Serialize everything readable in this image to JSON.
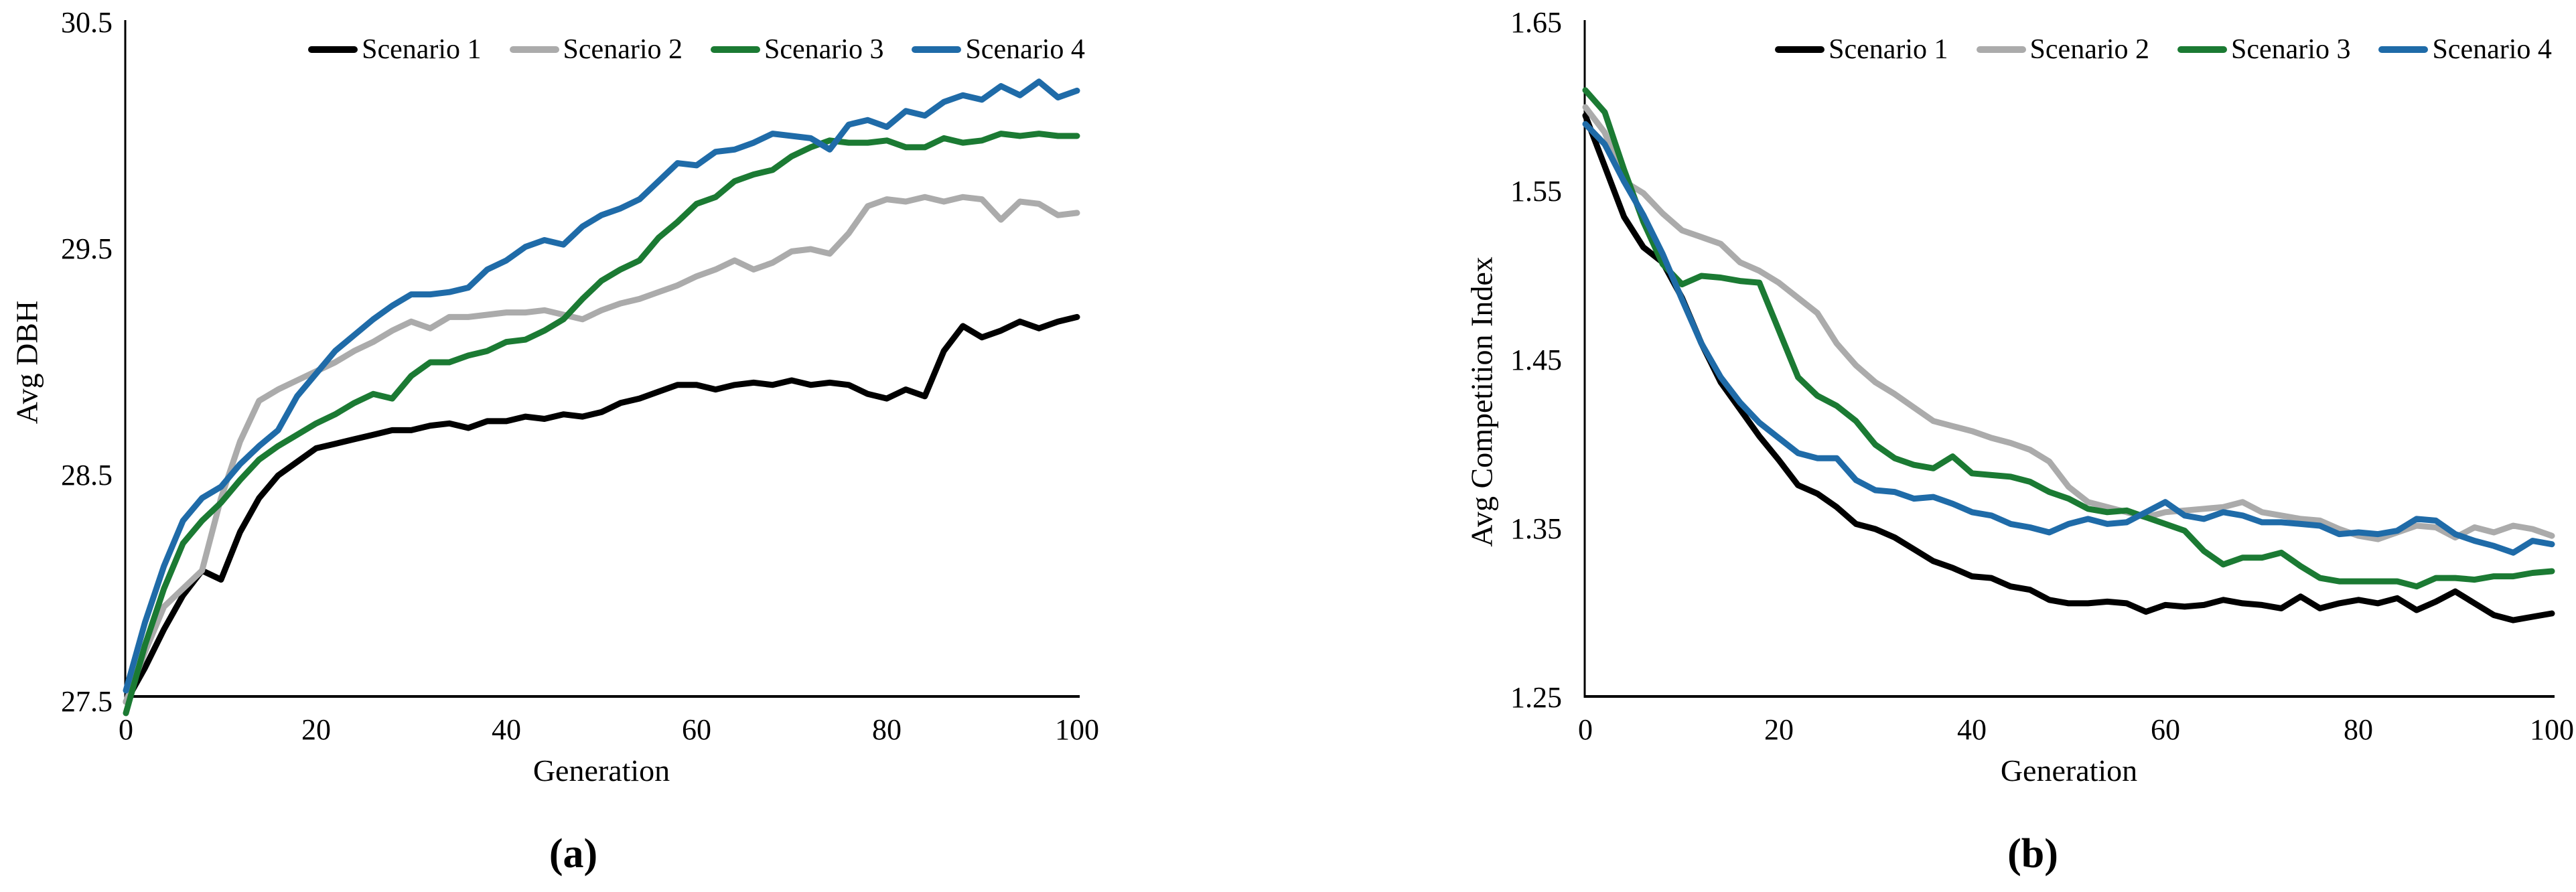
{
  "figure": {
    "legend_labels": [
      "Scenario 1",
      "Scenario 2",
      "Scenario 3",
      "Scenario 4"
    ],
    "series_colors": [
      "#000000",
      "#ABABAB",
      "#1B7A33",
      "#1F6BA8"
    ],
    "background_color": "#ffffff",
    "axis_color": "#000000"
  },
  "chart_data": [
    {
      "type": "line",
      "panel_label": "(a)",
      "title": "",
      "xlabel": "Generation",
      "ylabel": "Avg DBH",
      "xlim": [
        0,
        100
      ],
      "ylim": [
        27.5,
        30.5
      ],
      "xticks": [
        "0",
        "20",
        "40",
        "60",
        "80",
        "100"
      ],
      "yticks": [
        "30.5",
        "29.5",
        "28.5",
        "27.5"
      ],
      "ytick_values": [
        30.5,
        29.5,
        28.5,
        27.5
      ],
      "xtick_values": [
        0,
        20,
        40,
        60,
        80,
        100
      ],
      "grid": false,
      "legend_position": "top",
      "x": [
        0,
        2,
        4,
        6,
        8,
        10,
        12,
        14,
        16,
        18,
        20,
        22,
        24,
        26,
        28,
        30,
        32,
        34,
        36,
        38,
        40,
        42,
        44,
        46,
        48,
        50,
        52,
        54,
        56,
        58,
        60,
        62,
        64,
        66,
        68,
        70,
        72,
        74,
        76,
        78,
        80,
        82,
        84,
        86,
        88,
        90,
        92,
        94,
        96,
        98,
        100
      ],
      "series": [
        {
          "name": "Scenario 1",
          "color": "#000000",
          "values": [
            27.5,
            27.65,
            27.82,
            27.97,
            28.08,
            28.04,
            28.25,
            28.4,
            28.5,
            28.56,
            28.62,
            28.64,
            28.66,
            28.68,
            28.7,
            28.7,
            28.72,
            28.73,
            28.71,
            28.74,
            28.74,
            28.76,
            28.75,
            28.77,
            28.76,
            28.78,
            28.82,
            28.84,
            28.87,
            28.9,
            28.9,
            28.88,
            28.9,
            28.91,
            28.9,
            28.92,
            28.9,
            28.91,
            28.9,
            28.86,
            28.84,
            28.88,
            28.85,
            29.05,
            29.16,
            29.11,
            29.14,
            29.18,
            29.15,
            29.18,
            29.2
          ]
        },
        {
          "name": "Scenario 2",
          "color": "#ABABAB",
          "values": [
            27.5,
            27.72,
            27.92,
            28.0,
            28.08,
            28.4,
            28.65,
            28.83,
            28.88,
            28.92,
            28.96,
            29.0,
            29.05,
            29.09,
            29.14,
            29.18,
            29.15,
            29.2,
            29.2,
            29.21,
            29.22,
            29.22,
            29.23,
            29.21,
            29.19,
            29.23,
            29.26,
            29.28,
            29.31,
            29.34,
            29.38,
            29.41,
            29.45,
            29.41,
            29.44,
            29.49,
            29.5,
            29.48,
            29.57,
            29.69,
            29.72,
            29.71,
            29.73,
            29.71,
            29.73,
            29.72,
            29.63,
            29.71,
            29.7,
            29.65,
            29.66
          ]
        },
        {
          "name": "Scenario 3",
          "color": "#1B7A33",
          "values": [
            27.45,
            27.75,
            28.0,
            28.2,
            28.3,
            28.38,
            28.48,
            28.57,
            28.63,
            28.68,
            28.73,
            28.77,
            28.82,
            28.86,
            28.84,
            28.94,
            29.0,
            29.0,
            29.03,
            29.05,
            29.09,
            29.1,
            29.14,
            29.19,
            29.28,
            29.36,
            29.41,
            29.45,
            29.55,
            29.62,
            29.7,
            29.73,
            29.8,
            29.83,
            29.85,
            29.91,
            29.95,
            29.98,
            29.97,
            29.97,
            29.98,
            29.95,
            29.95,
            29.99,
            29.97,
            29.98,
            30.01,
            30.0,
            30.01,
            30.0,
            30.0
          ]
        },
        {
          "name": "Scenario 4",
          "color": "#1F6BA8",
          "values": [
            27.55,
            27.85,
            28.1,
            28.3,
            28.4,
            28.45,
            28.55,
            28.63,
            28.7,
            28.85,
            28.95,
            29.05,
            29.12,
            29.19,
            29.25,
            29.3,
            29.3,
            29.31,
            29.33,
            29.41,
            29.45,
            29.51,
            29.54,
            29.52,
            29.6,
            29.65,
            29.68,
            29.72,
            29.8,
            29.88,
            29.87,
            29.93,
            29.94,
            29.97,
            30.01,
            30.0,
            29.99,
            29.94,
            30.05,
            30.07,
            30.04,
            30.11,
            30.09,
            30.15,
            30.18,
            30.16,
            30.22,
            30.18,
            30.24,
            30.17,
            30.2
          ]
        }
      ]
    },
    {
      "type": "line",
      "panel_label": "(b)",
      "title": "",
      "xlabel": "Generation",
      "ylabel": "Avg Competition Index",
      "xlim": [
        0,
        100
      ],
      "ylim": [
        1.25,
        1.65
      ],
      "xticks": [
        "0",
        "20",
        "40",
        "60",
        "80",
        "100"
      ],
      "yticks": [
        "1.65",
        "1.55",
        "1.45",
        "1.35",
        "1.25"
      ],
      "ytick_values": [
        1.65,
        1.55,
        1.45,
        1.35,
        1.25
      ],
      "xtick_values": [
        0,
        20,
        40,
        60,
        80,
        100
      ],
      "grid": false,
      "legend_position": "top",
      "x": [
        0,
        2,
        4,
        6,
        8,
        10,
        12,
        14,
        16,
        18,
        20,
        22,
        24,
        26,
        28,
        30,
        32,
        34,
        36,
        38,
        40,
        42,
        44,
        46,
        48,
        50,
        52,
        54,
        56,
        58,
        60,
        62,
        64,
        66,
        68,
        70,
        72,
        74,
        76,
        78,
        80,
        82,
        84,
        86,
        88,
        90,
        92,
        94,
        96,
        98,
        100
      ],
      "series": [
        {
          "name": "Scenario 1",
          "color": "#000000",
          "values": [
            1.595,
            1.565,
            1.535,
            1.517,
            1.508,
            1.487,
            1.46,
            1.437,
            1.421,
            1.405,
            1.391,
            1.376,
            1.371,
            1.363,
            1.353,
            1.35,
            1.345,
            1.338,
            1.331,
            1.327,
            1.322,
            1.321,
            1.316,
            1.314,
            1.308,
            1.306,
            1.306,
            1.307,
            1.306,
            1.301,
            1.305,
            1.304,
            1.305,
            1.308,
            1.306,
            1.305,
            1.303,
            1.31,
            1.303,
            1.306,
            1.308,
            1.306,
            1.309,
            1.302,
            1.307,
            1.313,
            1.306,
            1.299,
            1.296,
            1.298,
            1.3
          ]
        },
        {
          "name": "Scenario 2",
          "color": "#ABABAB",
          "values": [
            1.6,
            1.585,
            1.556,
            1.549,
            1.537,
            1.527,
            1.523,
            1.519,
            1.508,
            1.503,
            1.496,
            1.487,
            1.478,
            1.46,
            1.447,
            1.437,
            1.43,
            1.422,
            1.414,
            1.411,
            1.408,
            1.404,
            1.401,
            1.397,
            1.39,
            1.375,
            1.366,
            1.363,
            1.36,
            1.357,
            1.36,
            1.361,
            1.362,
            1.363,
            1.366,
            1.36,
            1.358,
            1.356,
            1.355,
            1.35,
            1.346,
            1.344,
            1.348,
            1.352,
            1.351,
            1.345,
            1.351,
            1.348,
            1.352,
            1.35,
            1.346
          ]
        },
        {
          "name": "Scenario 3",
          "color": "#1B7A33",
          "values": [
            1.61,
            1.597,
            1.563,
            1.532,
            1.507,
            1.495,
            1.5,
            1.499,
            1.497,
            1.496,
            1.468,
            1.44,
            1.429,
            1.423,
            1.414,
            1.4,
            1.392,
            1.388,
            1.386,
            1.393,
            1.383,
            1.382,
            1.381,
            1.378,
            1.372,
            1.368,
            1.362,
            1.36,
            1.361,
            1.357,
            1.353,
            1.349,
            1.337,
            1.329,
            1.333,
            1.333,
            1.336,
            1.328,
            1.321,
            1.319,
            1.319,
            1.319,
            1.319,
            1.316,
            1.321,
            1.321,
            1.32,
            1.322,
            1.322,
            1.324,
            1.325
          ]
        },
        {
          "name": "Scenario 4",
          "color": "#1F6BA8",
          "values": [
            1.59,
            1.578,
            1.556,
            1.536,
            1.513,
            1.486,
            1.46,
            1.44,
            1.425,
            1.413,
            1.404,
            1.395,
            1.392,
            1.392,
            1.379,
            1.373,
            1.372,
            1.368,
            1.369,
            1.365,
            1.36,
            1.358,
            1.353,
            1.351,
            1.348,
            1.353,
            1.356,
            1.353,
            1.354,
            1.36,
            1.366,
            1.358,
            1.356,
            1.36,
            1.358,
            1.354,
            1.354,
            1.353,
            1.352,
            1.347,
            1.348,
            1.347,
            1.349,
            1.356,
            1.355,
            1.347,
            1.343,
            1.34,
            1.336,
            1.343,
            1.341
          ]
        }
      ]
    }
  ]
}
